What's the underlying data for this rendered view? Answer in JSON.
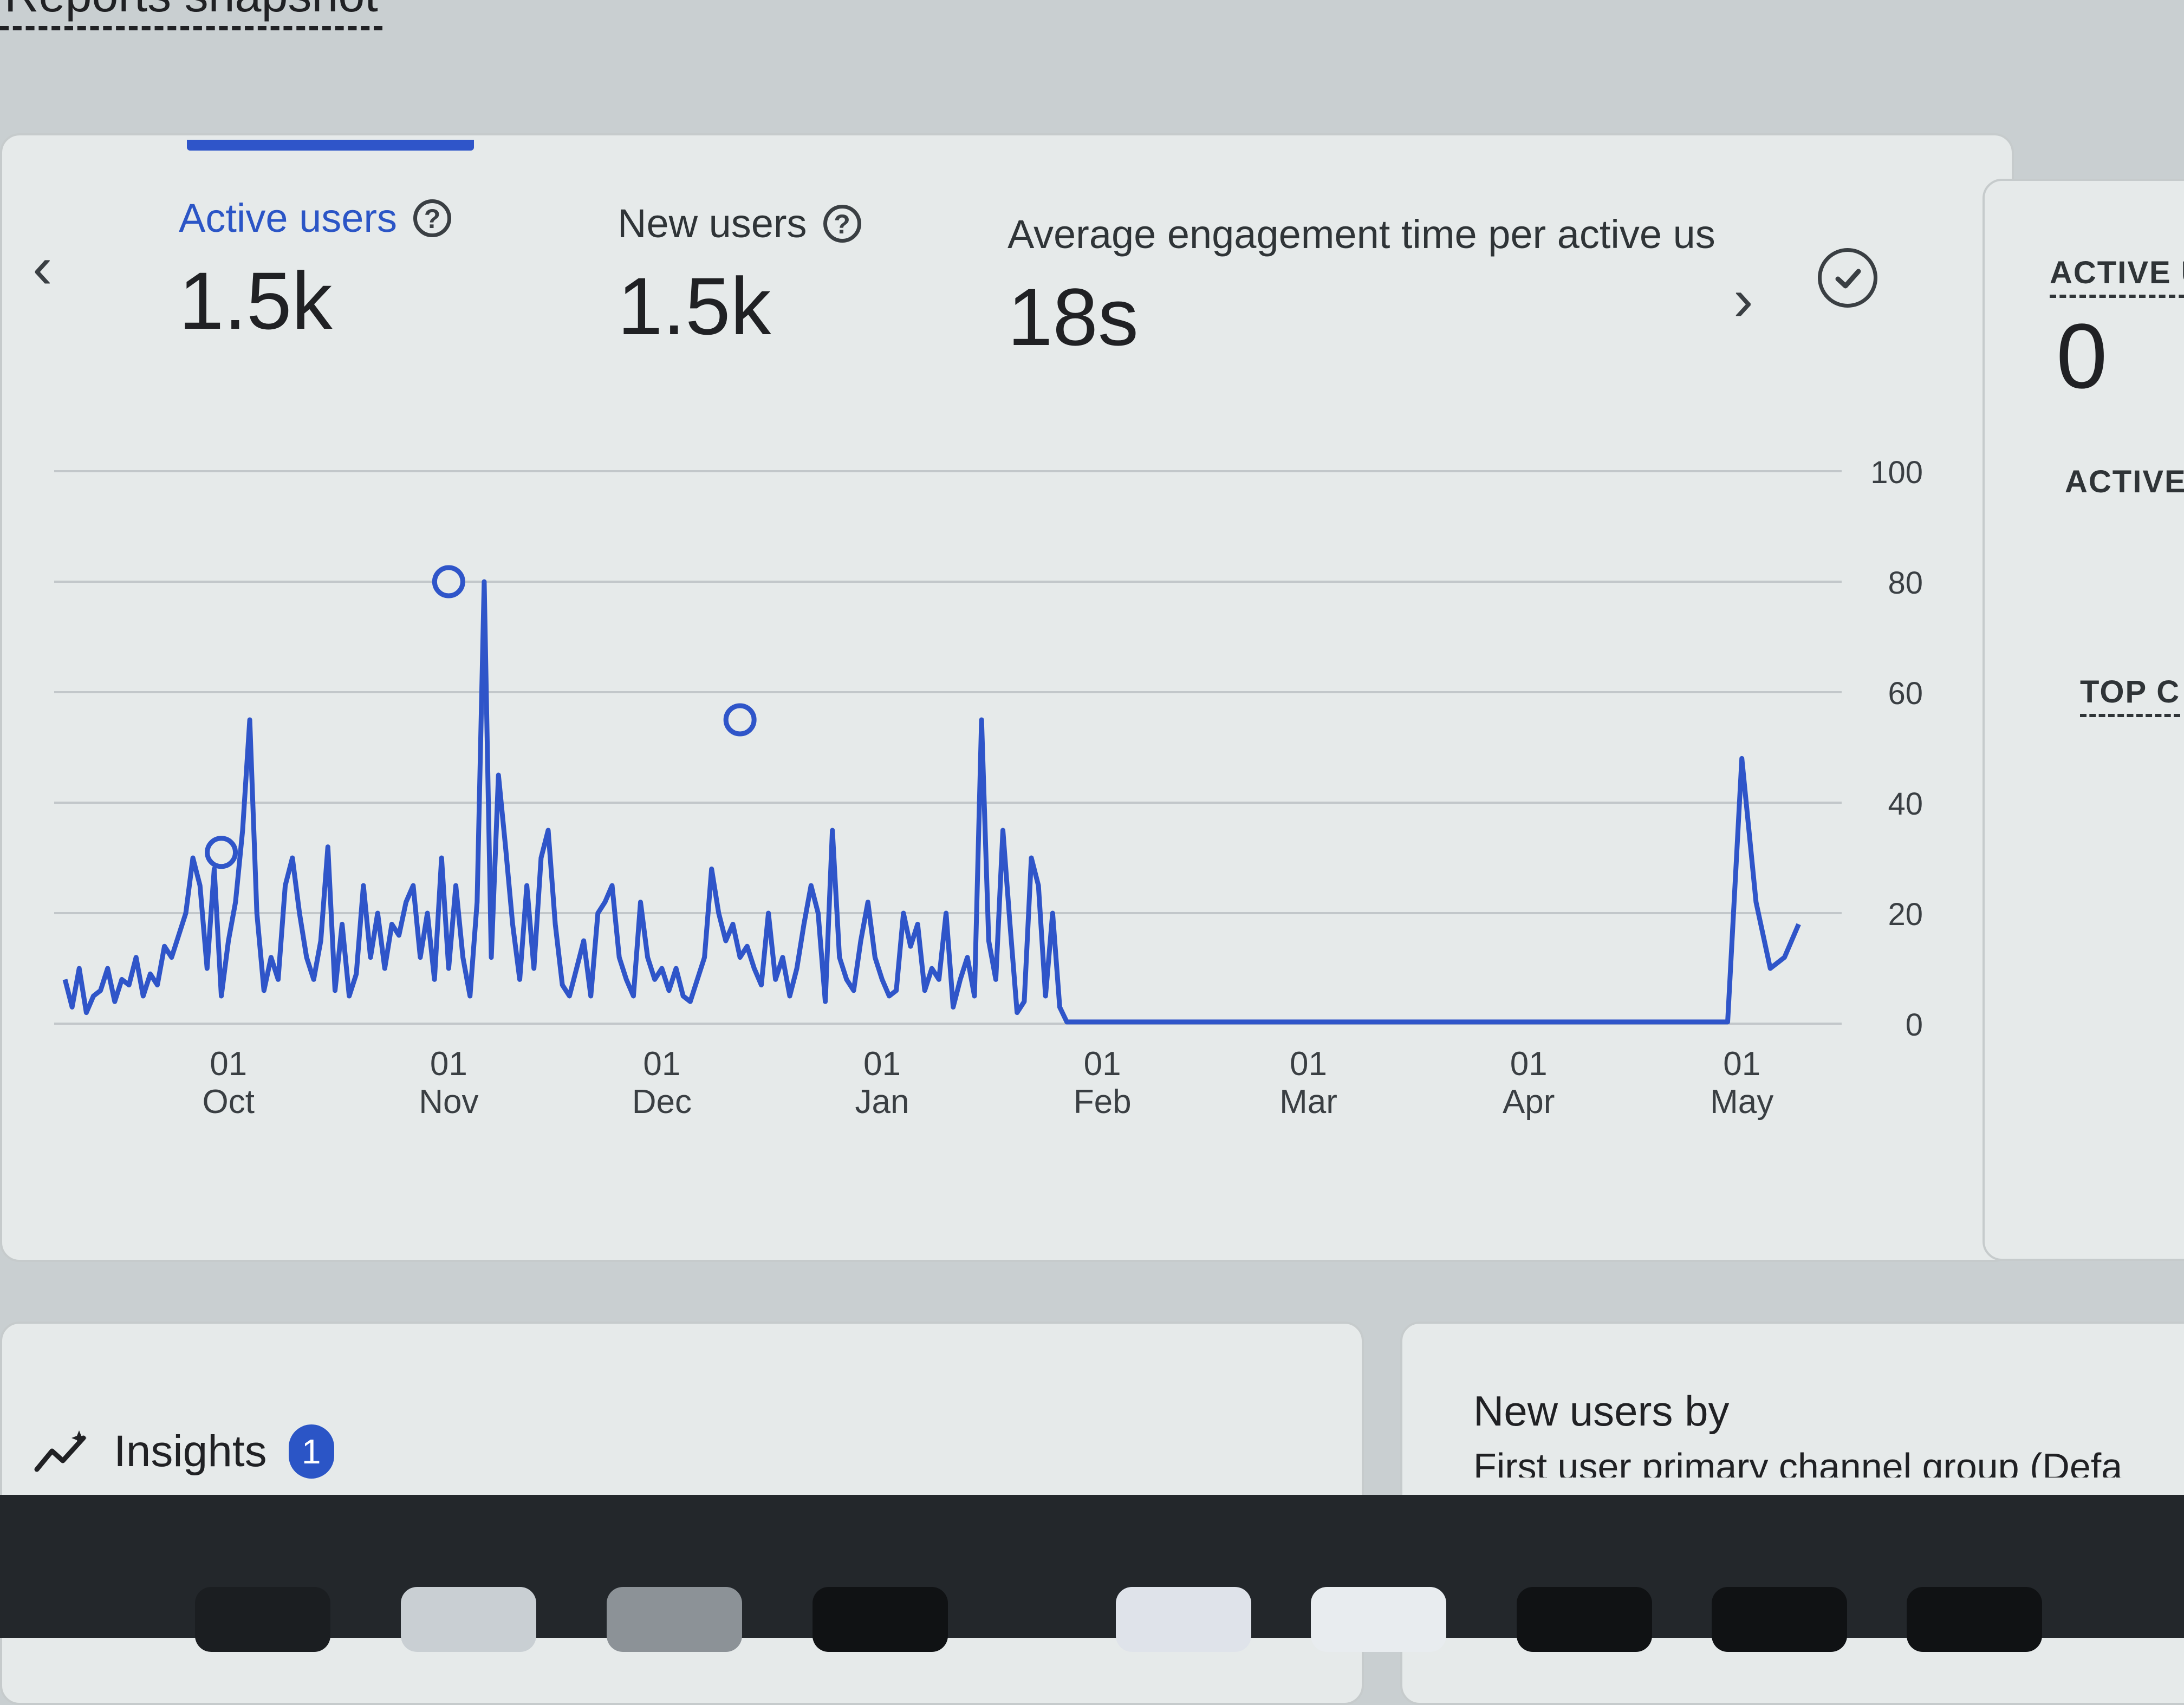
{
  "page": {
    "title": "Reports snapshot"
  },
  "metrics": [
    {
      "label": "Active users",
      "value": "1.5k",
      "selected": true
    },
    {
      "label": "New users",
      "value": "1.5k"
    },
    {
      "label": "Average engagement time per active us",
      "value": "18s"
    }
  ],
  "side_card": {
    "label1": "ACTIVE U",
    "value": "0",
    "label2": "ACTIVE",
    "label3": "TOP C"
  },
  "insights": {
    "label": "Insights",
    "badge": "1"
  },
  "new_users_card": {
    "title": "New users by",
    "subtitle": "First user primary channel group (Defa"
  },
  "colors": {
    "accent": "#2b55c6",
    "line": "#2f55c9"
  },
  "chart_data": {
    "type": "line",
    "title": "",
    "xlabel": "",
    "ylabel": "",
    "ylim": [
      0,
      100
    ],
    "yticks": [
      "100",
      "80",
      "60",
      "40",
      "20",
      "0"
    ],
    "x_tick_labels": [
      {
        "day": "01",
        "month": "Oct"
      },
      {
        "day": "01",
        "month": "Nov"
      },
      {
        "day": "01",
        "month": "Dec"
      },
      {
        "day": "01",
        "month": "Jan"
      },
      {
        "day": "01",
        "month": "Feb"
      },
      {
        "day": "01",
        "month": "Mar"
      },
      {
        "day": "01",
        "month": "Apr"
      },
      {
        "day": "01",
        "month": "May"
      }
    ],
    "x_start": "2023-09-08",
    "series": [
      {
        "values": [
          8,
          3,
          10,
          2,
          5,
          6,
          10,
          4,
          8,
          7,
          12,
          5,
          9,
          7,
          14,
          12,
          16,
          20,
          30,
          25,
          10,
          28,
          5,
          15,
          22,
          35,
          55,
          20,
          6,
          12,
          8,
          25,
          30,
          20,
          12,
          8,
          15,
          32,
          6,
          18,
          5,
          9,
          25,
          12,
          20,
          10,
          18,
          16,
          22,
          25,
          12,
          20,
          8,
          30,
          10,
          25,
          12,
          5,
          22,
          80,
          12,
          45,
          32,
          18,
          8,
          25,
          10,
          30,
          35,
          18,
          7,
          5,
          10,
          15,
          5,
          20,
          22,
          25,
          12,
          8,
          5,
          22,
          12,
          8,
          10,
          6,
          10,
          5,
          4,
          8,
          12,
          28,
          20,
          15,
          18,
          12,
          14,
          10,
          7,
          20,
          8,
          12,
          5,
          10,
          18,
          25,
          20,
          4,
          35,
          12,
          8,
          6,
          15,
          22,
          12,
          8,
          5,
          6,
          20,
          14,
          18,
          6,
          10,
          8,
          20,
          3,
          8,
          12,
          5,
          55,
          15,
          8,
          35,
          18,
          2,
          4,
          30,
          25,
          5,
          20,
          3,
          0.3
        ],
        "markers": [
          {
            "date": "2023-09-30",
            "value": 31
          },
          {
            "date": "2023-11-01",
            "value": 80
          },
          {
            "date": "2023-12-12",
            "value": 55
          }
        ],
        "flat_value": 0.3,
        "flat_until": "2024-04-29",
        "tail": [
          0.3,
          48,
          22,
          10,
          12,
          18
        ]
      }
    ]
  }
}
